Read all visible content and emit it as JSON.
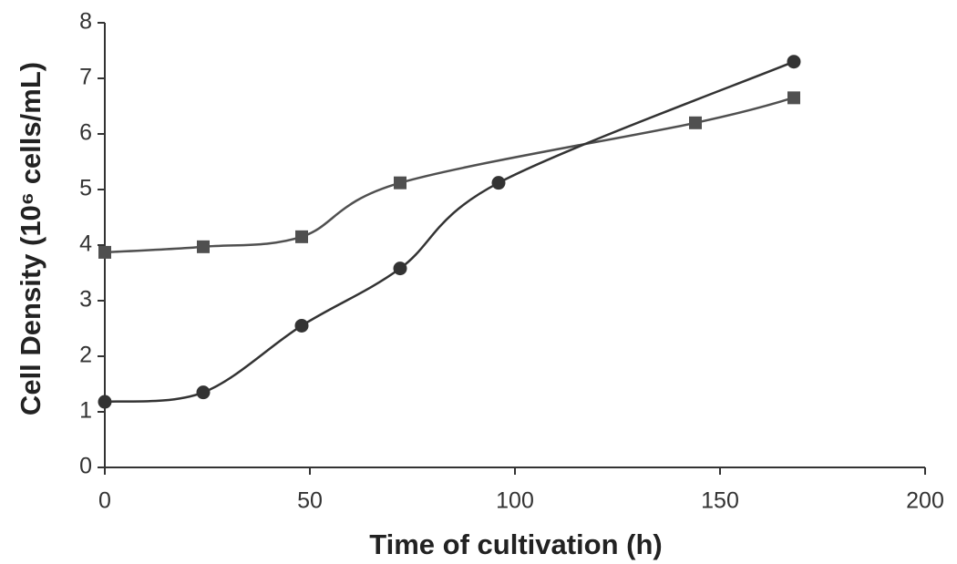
{
  "chart_data": {
    "type": "line",
    "x_label": "Time of cultivation (h)",
    "y_label": "Cell Density (10⁶ cells/mL)",
    "xlim": [
      0,
      200
    ],
    "xticks": [
      0,
      50,
      100,
      150,
      200
    ],
    "ylim": [
      0,
      8
    ],
    "yticks": [
      0,
      1,
      2,
      3,
      4,
      5,
      6,
      7,
      8
    ],
    "series": [
      {
        "marker": "square",
        "color": "#505050",
        "x": [
          0,
          24,
          48,
          72,
          144,
          168
        ],
        "values": [
          3.87,
          3.97,
          4.15,
          5.12,
          6.2,
          6.65
        ]
      },
      {
        "marker": "circle",
        "color": "#333333",
        "x": [
          0,
          24,
          48,
          72,
          96,
          168
        ],
        "values": [
          1.18,
          1.35,
          2.55,
          3.58,
          5.12,
          7.3
        ]
      }
    ]
  }
}
